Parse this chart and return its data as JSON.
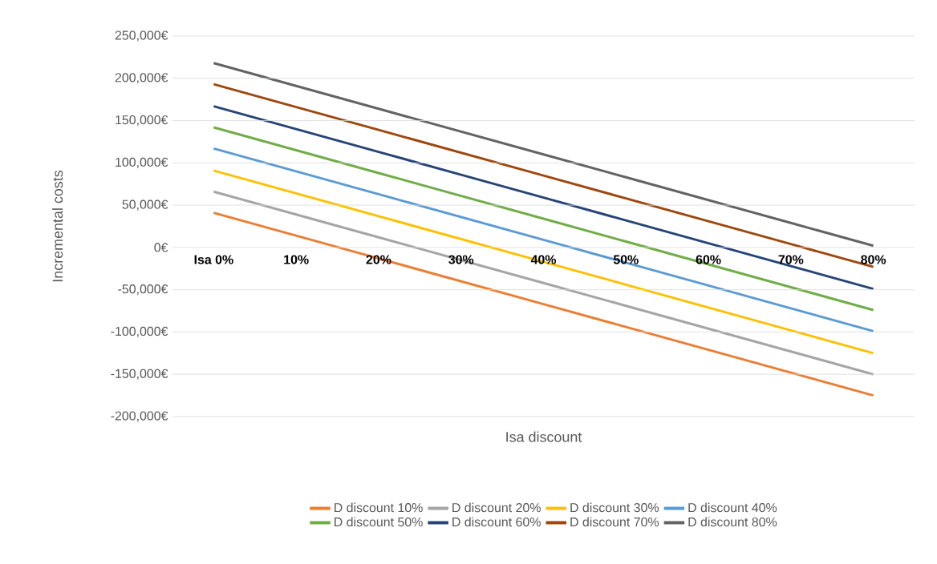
{
  "chart_data": {
    "type": "line",
    "xlabel": "Isa discount",
    "ylabel": "Incremental costs",
    "categories": [
      "Isa 0%",
      "10%",
      "20%",
      "30%",
      "40%",
      "50%",
      "60%",
      "70%",
      "80%"
    ],
    "ylim": [
      -200000,
      250000
    ],
    "yticks": [
      {
        "value": -200000,
        "label": "-200,000€"
      },
      {
        "value": -150000,
        "label": "-150,000€"
      },
      {
        "value": -100000,
        "label": "-100,000€"
      },
      {
        "value": -50000,
        "label": "-50,000€"
      },
      {
        "value": 0,
        "label": "0€"
      },
      {
        "value": 50000,
        "label": "50,000€"
      },
      {
        "value": 100000,
        "label": "100,000€"
      },
      {
        "value": 150000,
        "label": "150,000€"
      },
      {
        "value": 200000,
        "label": "200,000€"
      },
      {
        "value": 250000,
        "label": "250,000€"
      }
    ],
    "grid": "y",
    "legend": "bottom",
    "series": [
      {
        "name": "D discount 10%",
        "color": "#ed7d31",
        "values": [
          41000,
          14000,
          -13000,
          -40000,
          -67000,
          -94000,
          -121000,
          -148000,
          -175000
        ]
      },
      {
        "name": "D discount 20%",
        "color": "#a5a5a5",
        "values": [
          66000,
          39000,
          12000,
          -15000,
          -42000,
          -69000,
          -96000,
          -123000,
          -150000
        ]
      },
      {
        "name": "D discount 30%",
        "color": "#ffc000",
        "values": [
          91000,
          64000,
          37000,
          10000,
          -17000,
          -44000,
          -71000,
          -98000,
          -125000
        ]
      },
      {
        "name": "D discount 40%",
        "color": "#5b9bd5",
        "values": [
          117000,
          90000,
          63000,
          36000,
          9000,
          -18000,
          -45000,
          -72000,
          -99000
        ]
      },
      {
        "name": "D discount 50%",
        "color": "#70ad47",
        "values": [
          142000,
          115000,
          88000,
          61000,
          34000,
          7000,
          -20000,
          -47000,
          -74000
        ]
      },
      {
        "name": "D discount 60%",
        "color": "#264478",
        "values": [
          167000,
          140000,
          113000,
          86000,
          59000,
          32000,
          5000,
          -22000,
          -49000
        ]
      },
      {
        "name": "D discount 70%",
        "color": "#9e480e",
        "values": [
          193000,
          166000,
          139000,
          112000,
          85000,
          58000,
          31000,
          4000,
          -23000
        ]
      },
      {
        "name": "D discount 80%",
        "color": "#636363",
        "values": [
          218000,
          191000,
          164000,
          137000,
          110000,
          83000,
          56000,
          29000,
          2000
        ]
      }
    ]
  }
}
